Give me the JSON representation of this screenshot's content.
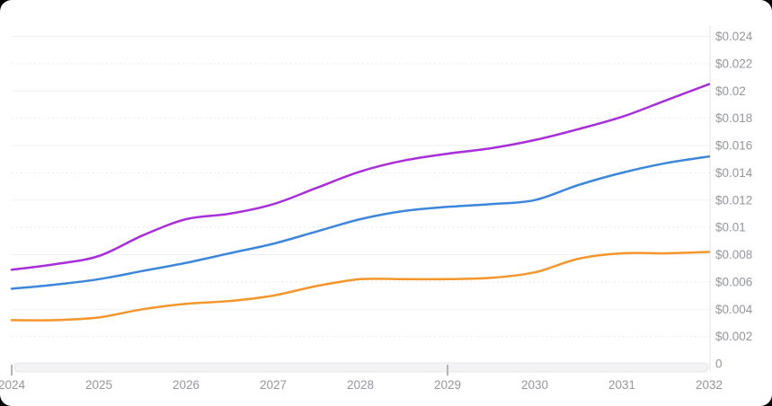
{
  "page": {
    "background_color": "#000000",
    "card_background_color": "#ffffff"
  },
  "chart_data": {
    "type": "line",
    "title": "",
    "legend": "none",
    "grid": {
      "horizontal": true,
      "vertical": false
    },
    "x_axis": {
      "labels": [
        "2024",
        "2025",
        "2026",
        "2027",
        "2028",
        "2029",
        "2030",
        "2031",
        "2032"
      ],
      "range": [
        2024,
        2032
      ],
      "ticks_emphasized": [
        2024,
        2029
      ]
    },
    "y_axis": {
      "position": "right",
      "labels": [
        "$0.024",
        "$0.022",
        "$0.02",
        "$0.018",
        "$0.016",
        "$0.014",
        "$0.012",
        "$0.01",
        "$0.008",
        "$0.006",
        "$0.004",
        "$0.002",
        "0"
      ],
      "range": [
        0,
        0.024
      ],
      "step": 0.002
    },
    "x": [
      2024,
      2024.5,
      2025,
      2025.5,
      2026,
      2026.5,
      2027,
      2027.5,
      2028,
      2028.5,
      2029,
      2029.5,
      2030,
      2030.5,
      2031,
      2031.5,
      2032
    ],
    "series": [
      {
        "name": "series-1-purple",
        "color": "#A82ED9",
        "values": [
          0.0069,
          0.0073,
          0.0079,
          0.0094,
          0.0106,
          0.011,
          0.0117,
          0.0129,
          0.0141,
          0.0149,
          0.0154,
          0.0158,
          0.0164,
          0.0172,
          0.0181,
          0.0193,
          0.0205
        ]
      },
      {
        "name": "series-2-blue",
        "color": "#3C86DC",
        "values": [
          0.0055,
          0.0058,
          0.0062,
          0.0068,
          0.0074,
          0.0081,
          0.0088,
          0.0097,
          0.0106,
          0.0112,
          0.0115,
          0.0117,
          0.012,
          0.0131,
          0.014,
          0.0147,
          0.0152
        ]
      },
      {
        "name": "series-3-orange",
        "color": "#F4962B",
        "values": [
          0.0032,
          0.0032,
          0.0034,
          0.004,
          0.0044,
          0.0046,
          0.005,
          0.0057,
          0.0062,
          0.0062,
          0.0062,
          0.0063,
          0.0067,
          0.0077,
          0.0081,
          0.0081,
          0.0082
        ]
      }
    ],
    "style": {
      "gridline_solid_color": "#f1f1f4",
      "gridline_dashed_color": "#e9e9ee",
      "axis_line_color": "#e3e3e8",
      "label_color": "#94969e",
      "scrollbar_fill": "#f3f3f6",
      "scrollbar_border": "#e7e7eb",
      "tick_color": "#b3b3ba"
    }
  }
}
